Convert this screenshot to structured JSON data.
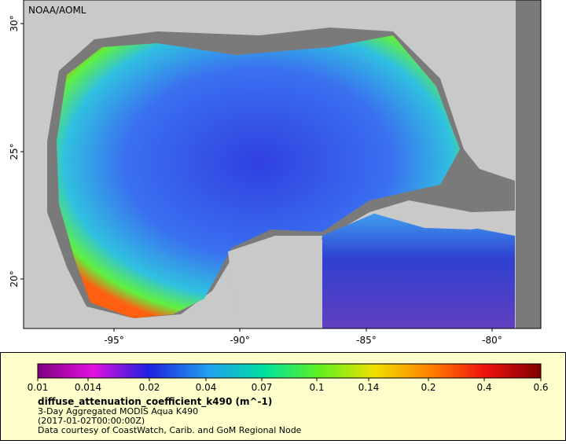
{
  "map": {
    "source": "NOAA/AOML",
    "lat_ticks": [
      "30°",
      "25°",
      "20°"
    ],
    "lon_ticks": [
      "-95°",
      "-90°",
      "-85°",
      "-80°"
    ]
  },
  "legend": {
    "colorbar_ticks": [
      0.01,
      0.014,
      0.02,
      0.04,
      0.07,
      0.1,
      0.14,
      0.2,
      0.4,
      0.6
    ],
    "variable": "diffuse_attenuation_coefficient_k490 (m^-1)",
    "dataset": "3-Day Aggregated MODIS Aqua K490",
    "time": "(2017-01-02T00:00:00Z)",
    "credit": "Data courtesy of CoastWatch, Carib. and GoM Regional Node"
  }
}
